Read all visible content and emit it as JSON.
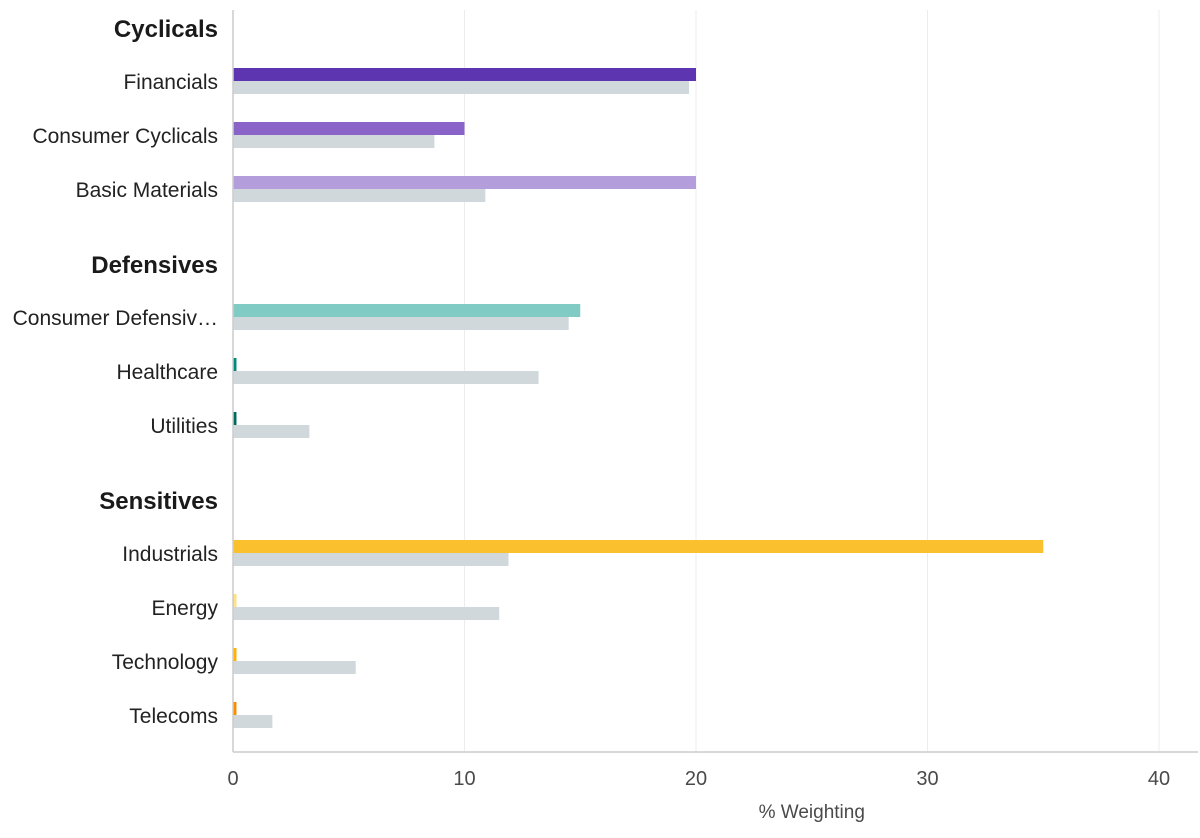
{
  "chart_data": {
    "type": "bar",
    "orientation": "horizontal",
    "xlabel": "% Weighting",
    "xlim": [
      0,
      40
    ],
    "xticks": [
      0,
      10,
      20,
      30,
      40
    ],
    "grid": true,
    "groups": [
      {
        "label": "Cyclicals",
        "categories": [
          {
            "name": "Financials",
            "value": 20.0,
            "benchmark": 19.7,
            "color": "#5e35b1"
          },
          {
            "name": "Consumer Cyclicals",
            "value": 10.0,
            "benchmark": 8.7,
            "color": "#8a63c9"
          },
          {
            "name": "Basic Materials",
            "value": 20.0,
            "benchmark": 10.9,
            "color": "#b39ddb"
          }
        ]
      },
      {
        "label": "Defensives",
        "categories": [
          {
            "name": "Consumer Defensiv…",
            "value": 15.0,
            "benchmark": 14.5,
            "color": "#80cbc4"
          },
          {
            "name": "Healthcare",
            "value": 0.15,
            "benchmark": 13.2,
            "color": "#00897b"
          },
          {
            "name": "Utilities",
            "value": 0.15,
            "benchmark": 3.3,
            "color": "#00695c"
          }
        ]
      },
      {
        "label": "Sensitives",
        "categories": [
          {
            "name": "Industrials",
            "value": 35.0,
            "benchmark": 11.9,
            "color": "#fbc02d"
          },
          {
            "name": "Energy",
            "value": 0.15,
            "benchmark": 11.5,
            "color": "#ffe082"
          },
          {
            "name": "Technology",
            "value": 0.15,
            "benchmark": 5.3,
            "color": "#ffb300"
          },
          {
            "name": "Telecoms",
            "value": 0.15,
            "benchmark": 1.7,
            "color": "#fb8c00"
          }
        ]
      }
    ],
    "benchmark_color": "#d0d8dc"
  }
}
